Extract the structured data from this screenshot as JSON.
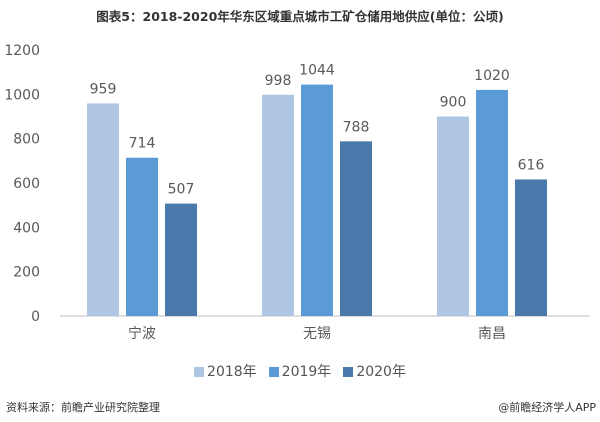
{
  "title": "图表5：2018-2020年华东区域重点城市工矿仓储用地供应(单位：公顷)",
  "source": "资料来源：前瞻产业研究院整理",
  "brand": "@前瞻经济学人APP",
  "chart_data": {
    "type": "bar",
    "title": "图表5：2018-2020年华东区域重点城市工矿仓储用地供应(单位：公顷)",
    "categories": [
      "宁波",
      "无锡",
      "南昌"
    ],
    "series": [
      {
        "name": "2018年",
        "values": [
          959,
          998,
          900
        ],
        "color": "#aec6e3"
      },
      {
        "name": "2019年",
        "values": [
          714,
          1044,
          1020
        ],
        "color": "#5b9bd5"
      },
      {
        "name": "2020年",
        "values": [
          507,
          788,
          616
        ],
        "color": "#4a7aab"
      }
    ],
    "yticks": [
      0,
      200,
      400,
      600,
      800,
      1000,
      1200
    ],
    "ylim": [
      0,
      1200
    ],
    "xlabel": "",
    "ylabel": "",
    "legend": "bottom",
    "grid": false
  }
}
